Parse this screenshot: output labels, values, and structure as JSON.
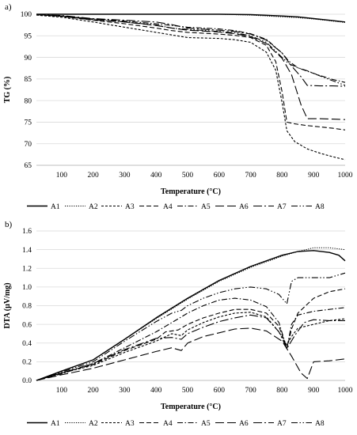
{
  "chart_data": [
    {
      "panel_label": "a)",
      "type": "line",
      "xlabel": "Temperature (°C)",
      "ylabel": "TG (%)",
      "xlim": [
        20,
        1000
      ],
      "ylim": [
        65,
        100
      ],
      "xticks": [
        100,
        200,
        300,
        400,
        500,
        600,
        700,
        800,
        900,
        1000
      ],
      "yticks": [
        65,
        70,
        75,
        80,
        85,
        90,
        95,
        100
      ],
      "grid": "horizontal",
      "legend_position": "bottom",
      "series": [
        {
          "name": "A1",
          "style": "solid",
          "x": [
            20,
            100,
            200,
            300,
            400,
            500,
            600,
            700,
            800,
            850,
            900,
            950,
            1000
          ],
          "y": [
            100,
            100,
            100,
            100,
            100,
            100,
            100,
            99.9,
            99.6,
            99.4,
            99.0,
            98.6,
            98.2
          ]
        },
        {
          "name": "A2",
          "style": "dotted",
          "x": [
            20,
            100,
            200,
            300,
            400,
            500,
            600,
            700,
            800,
            850,
            900,
            950,
            1000
          ],
          "y": [
            100,
            100,
            100,
            100,
            100,
            100,
            100,
            99.8,
            99.4,
            99.2,
            98.9,
            98.5,
            98.1
          ]
        },
        {
          "name": "A3",
          "style": "short-dash",
          "x": [
            20,
            100,
            200,
            300,
            400,
            450,
            500,
            600,
            650,
            700,
            750,
            780,
            800,
            815,
            840,
            880,
            920,
            960,
            1000
          ],
          "y": [
            99.8,
            99.3,
            98.2,
            97.0,
            95.8,
            95.2,
            94.6,
            94.4,
            94.1,
            93.5,
            91.2,
            87.0,
            79.5,
            73.0,
            70.5,
            68.8,
            67.8,
            67.0,
            66.3
          ]
        },
        {
          "name": "A4",
          "style": "dash",
          "x": [
            20,
            100,
            200,
            300,
            400,
            450,
            500,
            600,
            650,
            700,
            750,
            780,
            800,
            815,
            840,
            880,
            920,
            960,
            1000
          ],
          "y": [
            99.9,
            99.5,
            98.6,
            97.8,
            96.8,
            96.2,
            95.8,
            95.4,
            95.1,
            94.6,
            92.8,
            89.0,
            82.0,
            75.0,
            74.6,
            74.2,
            73.9,
            73.6,
            73.2
          ]
        },
        {
          "name": "A5",
          "style": "dash-dot",
          "x": [
            20,
            100,
            200,
            300,
            400,
            450,
            500,
            600,
            650,
            700,
            750,
            800,
            820,
            850,
            880,
            920,
            960,
            1000
          ],
          "y": [
            99.9,
            99.6,
            98.9,
            98.4,
            97.8,
            97.4,
            97.0,
            96.6,
            96.2,
            95.5,
            94.2,
            91.0,
            89.2,
            87.6,
            86.8,
            85.8,
            84.9,
            84.2
          ]
        },
        {
          "name": "A6",
          "style": "long-dash",
          "x": [
            20,
            100,
            200,
            300,
            400,
            450,
            500,
            600,
            650,
            700,
            750,
            800,
            830,
            860,
            880,
            920,
            960,
            1000
          ],
          "y": [
            99.9,
            99.6,
            98.8,
            98.2,
            97.4,
            96.8,
            96.3,
            95.9,
            95.5,
            94.8,
            93.2,
            89.8,
            86.0,
            79.0,
            75.8,
            75.8,
            75.7,
            75.6
          ]
        },
        {
          "name": "A7",
          "style": "long-dash-dot",
          "x": [
            20,
            100,
            200,
            300,
            400,
            450,
            500,
            600,
            650,
            700,
            750,
            800,
            830,
            860,
            880,
            920,
            960,
            1000
          ],
          "y": [
            99.9,
            99.7,
            99.0,
            98.6,
            98.2,
            97.6,
            96.8,
            96.3,
            96.0,
            95.4,
            94.0,
            91.0,
            88.0,
            85.5,
            83.5,
            83.4,
            83.4,
            83.3
          ]
        },
        {
          "name": "A8",
          "style": "dash-dot-dot",
          "x": [
            20,
            100,
            200,
            300,
            400,
            450,
            500,
            600,
            650,
            700,
            750,
            800,
            820,
            850,
            880,
            920,
            960,
            1000
          ],
          "y": [
            99.9,
            99.5,
            98.7,
            98.2,
            97.5,
            96.8,
            96.5,
            96.0,
            95.7,
            95.0,
            93.5,
            90.0,
            88.6,
            87.6,
            86.9,
            85.7,
            84.6,
            83.5
          ]
        }
      ]
    },
    {
      "panel_label": "b)",
      "type": "line",
      "xlabel": "Temperature (°C)",
      "ylabel": "DTA (µV/mg)",
      "xlim": [
        20,
        1000
      ],
      "ylim": [
        0,
        1.6
      ],
      "xticks": [
        100,
        200,
        300,
        400,
        500,
        600,
        700,
        800,
        900,
        1000
      ],
      "yticks": [
        0.0,
        0.2,
        0.4,
        0.6,
        0.8,
        1.0,
        1.2,
        1.4,
        1.6
      ],
      "ytick_labels": [
        "0.0",
        "0.2",
        "0.4",
        "0.6",
        "0.8",
        "1.0",
        "1.2",
        "1.4",
        "1.6"
      ],
      "grid": "horizontal",
      "legend_position": "bottom",
      "series": [
        {
          "name": "A1",
          "style": "solid",
          "x": [
            20,
            100,
            200,
            300,
            400,
            500,
            600,
            700,
            800,
            850,
            900,
            950,
            980,
            1000
          ],
          "y": [
            0.0,
            0.1,
            0.22,
            0.44,
            0.67,
            0.88,
            1.07,
            1.22,
            1.34,
            1.38,
            1.39,
            1.37,
            1.34,
            1.28
          ]
        },
        {
          "name": "A2",
          "style": "dotted",
          "x": [
            20,
            100,
            200,
            300,
            400,
            500,
            600,
            700,
            800,
            850,
            900,
            950,
            1000
          ],
          "y": [
            0.0,
            0.1,
            0.22,
            0.44,
            0.66,
            0.87,
            1.06,
            1.21,
            1.33,
            1.38,
            1.42,
            1.42,
            1.4
          ]
        },
        {
          "name": "A3",
          "style": "short-dash",
          "x": [
            20,
            100,
            200,
            300,
            400,
            450,
            480,
            500,
            550,
            600,
            650,
            700,
            750,
            790,
            815,
            830,
            850,
            900,
            950,
            1000
          ],
          "y": [
            0.0,
            0.08,
            0.16,
            0.3,
            0.42,
            0.5,
            0.48,
            0.54,
            0.62,
            0.68,
            0.72,
            0.73,
            0.68,
            0.52,
            0.38,
            0.47,
            0.56,
            0.6,
            0.64,
            0.66
          ]
        },
        {
          "name": "A4",
          "style": "dash",
          "x": [
            20,
            100,
            200,
            300,
            400,
            430,
            470,
            500,
            550,
            600,
            650,
            700,
            750,
            790,
            815,
            830,
            850,
            900,
            950,
            1000
          ],
          "y": [
            0.0,
            0.08,
            0.17,
            0.32,
            0.44,
            0.52,
            0.54,
            0.6,
            0.67,
            0.72,
            0.76,
            0.76,
            0.72,
            0.58,
            0.34,
            0.55,
            0.72,
            0.88,
            0.95,
            0.98
          ]
        },
        {
          "name": "A5",
          "style": "dash-dot",
          "x": [
            20,
            100,
            200,
            300,
            400,
            450,
            480,
            500,
            550,
            600,
            650,
            700,
            750,
            790,
            815,
            830,
            850,
            900,
            950,
            1000
          ],
          "y": [
            0.0,
            0.07,
            0.18,
            0.35,
            0.52,
            0.62,
            0.68,
            0.72,
            0.8,
            0.86,
            0.88,
            0.86,
            0.79,
            0.62,
            0.34,
            0.6,
            0.7,
            0.74,
            0.76,
            0.78
          ]
        },
        {
          "name": "A6",
          "style": "long-dash",
          "x": [
            20,
            100,
            200,
            300,
            400,
            450,
            480,
            500,
            550,
            600,
            650,
            700,
            750,
            800,
            830,
            860,
            880,
            900,
            950,
            1000
          ],
          "y": [
            0.0,
            0.06,
            0.13,
            0.22,
            0.31,
            0.35,
            0.32,
            0.4,
            0.47,
            0.51,
            0.55,
            0.56,
            0.53,
            0.42,
            0.26,
            0.08,
            0.02,
            0.2,
            0.21,
            0.23
          ]
        },
        {
          "name": "A7",
          "style": "long-dash-dot",
          "x": [
            20,
            100,
            200,
            300,
            400,
            450,
            480,
            500,
            550,
            600,
            650,
            700,
            750,
            790,
            815,
            840,
            870,
            900,
            950,
            1000
          ],
          "y": [
            0.0,
            0.08,
            0.18,
            0.33,
            0.45,
            0.46,
            0.44,
            0.5,
            0.57,
            0.63,
            0.67,
            0.7,
            0.67,
            0.52,
            0.34,
            0.48,
            0.62,
            0.65,
            0.64,
            0.64
          ]
        },
        {
          "name": "A8",
          "style": "dash-dot-dot",
          "x": [
            20,
            100,
            200,
            300,
            400,
            450,
            480,
            500,
            550,
            600,
            650,
            700,
            750,
            790,
            815,
            830,
            850,
            900,
            950,
            1000
          ],
          "y": [
            0.0,
            0.09,
            0.2,
            0.42,
            0.63,
            0.72,
            0.75,
            0.8,
            0.88,
            0.94,
            0.98,
            1.0,
            0.98,
            0.92,
            0.82,
            1.06,
            1.1,
            1.1,
            1.1,
            1.15
          ]
        }
      ]
    }
  ]
}
